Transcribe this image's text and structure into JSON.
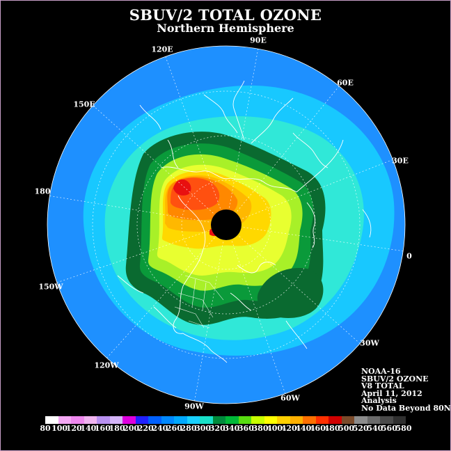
{
  "title": "SBUV/2 TOTAL OZONE",
  "subtitle": "Northern Hemisphere",
  "longitude_labels": [
    "90E",
    "60E",
    "30E",
    "0",
    "30W",
    "60W",
    "90W",
    "120W",
    "150W",
    "180",
    "150E",
    "120E"
  ],
  "info": {
    "satellite": "NOAA-16",
    "instrument": "SBUV/2 OZONE",
    "version": "V8 TOTAL",
    "date": "April 11, 2012",
    "product": "Analysis",
    "note": "No Data Beyond 80N"
  },
  "colorbar": {
    "labels": [
      "80",
      "100",
      "120",
      "140",
      "160",
      "180",
      "200",
      "220",
      "240",
      "260",
      "280",
      "300",
      "320",
      "340",
      "360",
      "380",
      "400",
      "420",
      "440",
      "460",
      "480",
      "500",
      "520",
      "540",
      "560",
      "580"
    ],
    "colors": [
      "#ffffff",
      "#f4a8f4",
      "#ee88ee",
      "#f0b4f0",
      "#b890f0",
      "#d4b4f8",
      "#dd00dd",
      "#2020ff",
      "#0060ff",
      "#0088ff",
      "#00a8ff",
      "#18d0ff",
      "#18e0c8",
      "#008a3c",
      "#00b838",
      "#58dc10",
      "#c8ff00",
      "#ffff00",
      "#ffd000",
      "#ffb000",
      "#ff7000",
      "#ff3000",
      "#d00000",
      "#7a4a2a",
      "#8c8c8c",
      "#6a6a6a",
      "#4a4a4a",
      "#303030"
    ]
  },
  "map_colors": {
    "background": "#000000",
    "ocean_outer": "#1e90ff",
    "level_300": "#18c8ff",
    "level_320": "#30e8d8",
    "level_340": "#0a6a30",
    "level_360": "#0a9a3a",
    "level_380": "#a8f028",
    "level_400": "#e8ff30",
    "level_420": "#ffd800",
    "level_440": "#ffb800",
    "level_460": "#ff8800",
    "level_480": "#ff5010",
    "level_500": "#e81010",
    "pole_nodata": "#000000",
    "coastline": "#ffffff"
  }
}
